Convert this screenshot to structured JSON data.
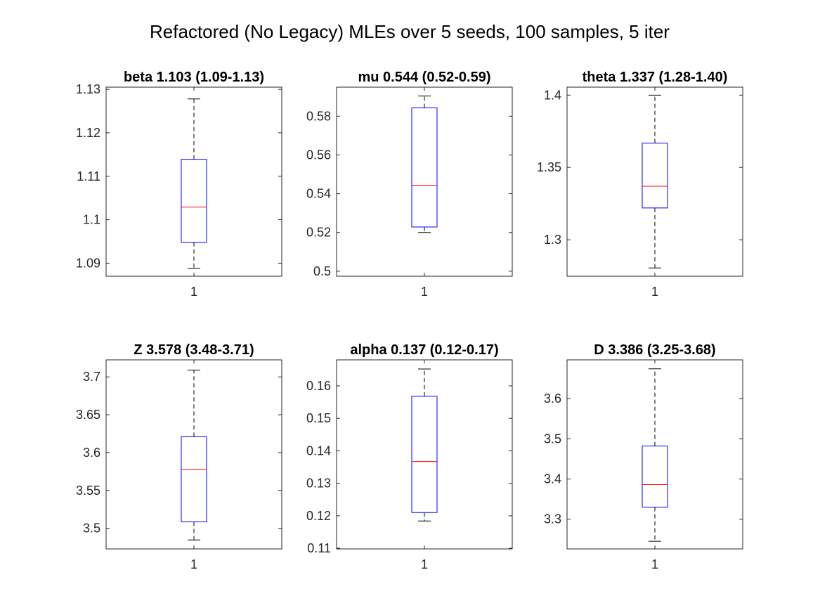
{
  "figure": {
    "title": "Refactored (No Legacy) MLEs over 5 seeds, 100 samples, 5 iter"
  },
  "colors": {
    "box": "#0000ff",
    "median": "#ff0000",
    "whisker": "#000000",
    "axes": "#262626",
    "background": "#ffffff"
  },
  "chart_data": [
    {
      "type": "box",
      "title": "beta 1.103 (1.09-1.13)",
      "categories": [
        "1"
      ],
      "box": {
        "min": 1.0888,
        "q1": 1.0948,
        "median": 1.1029,
        "q3": 1.1139,
        "max": 1.1278
      },
      "ylim": [
        1.087,
        1.1305
      ],
      "yticks": [
        1.09,
        1.1,
        1.11,
        1.12,
        1.13
      ],
      "ytick_labels": [
        "1.09",
        "1.1",
        "1.11",
        "1.12",
        "1.13"
      ],
      "grid": false
    },
    {
      "type": "box",
      "title": "mu 0.544 (0.52-0.59)",
      "categories": [
        "1"
      ],
      "box": {
        "min": 0.52,
        "q1": 0.5228,
        "median": 0.5444,
        "q3": 0.5843,
        "max": 0.5904
      },
      "ylim": [
        0.4974,
        0.595
      ],
      "yticks": [
        0.5,
        0.52,
        0.54,
        0.56,
        0.58
      ],
      "ytick_labels": [
        "0.5",
        "0.52",
        "0.54",
        "0.56",
        "0.58"
      ],
      "grid": false
    },
    {
      "type": "box",
      "title": "theta 1.337 (1.28-1.40)",
      "categories": [
        "1"
      ],
      "box": {
        "min": 1.2805,
        "q1": 1.322,
        "median": 1.337,
        "q3": 1.3668,
        "max": 1.4
      },
      "ylim": [
        1.2748,
        1.4055
      ],
      "yticks": [
        1.3,
        1.35,
        1.4
      ],
      "ytick_labels": [
        "1.3",
        "1.35",
        "1.4"
      ],
      "grid": false
    },
    {
      "type": "box",
      "title": "Z 3.578 (3.48-3.71)",
      "categories": [
        "1"
      ],
      "box": {
        "min": 3.4845,
        "q1": 3.5085,
        "median": 3.578,
        "q3": 3.621,
        "max": 3.709
      },
      "ylim": [
        3.4727,
        3.7225
      ],
      "yticks": [
        3.5,
        3.55,
        3.6,
        3.65,
        3.7
      ],
      "ytick_labels": [
        "3.5",
        "3.55",
        "3.6",
        "3.65",
        "3.7"
      ],
      "grid": false
    },
    {
      "type": "box",
      "title": "alpha 0.137 (0.12-0.17)",
      "categories": [
        "1"
      ],
      "box": {
        "min": 0.1184,
        "q1": 0.121,
        "median": 0.1367,
        "q3": 0.1568,
        "max": 0.1652
      },
      "ylim": [
        0.1098,
        0.168
      ],
      "yticks": [
        0.11,
        0.12,
        0.13,
        0.14,
        0.15,
        0.16
      ],
      "ytick_labels": [
        "0.11",
        "0.12",
        "0.13",
        "0.14",
        "0.15",
        "0.16"
      ],
      "grid": false
    },
    {
      "type": "box",
      "title": "D 3.386 (3.25-3.68)",
      "categories": [
        "1"
      ],
      "box": {
        "min": 3.245,
        "q1": 3.33,
        "median": 3.386,
        "q3": 3.482,
        "max": 3.674
      },
      "ylim": [
        3.2259,
        3.6964
      ],
      "yticks": [
        3.3,
        3.4,
        3.5,
        3.6
      ],
      "ytick_labels": [
        "3.3",
        "3.4",
        "3.5",
        "3.6"
      ],
      "grid": false
    }
  ]
}
